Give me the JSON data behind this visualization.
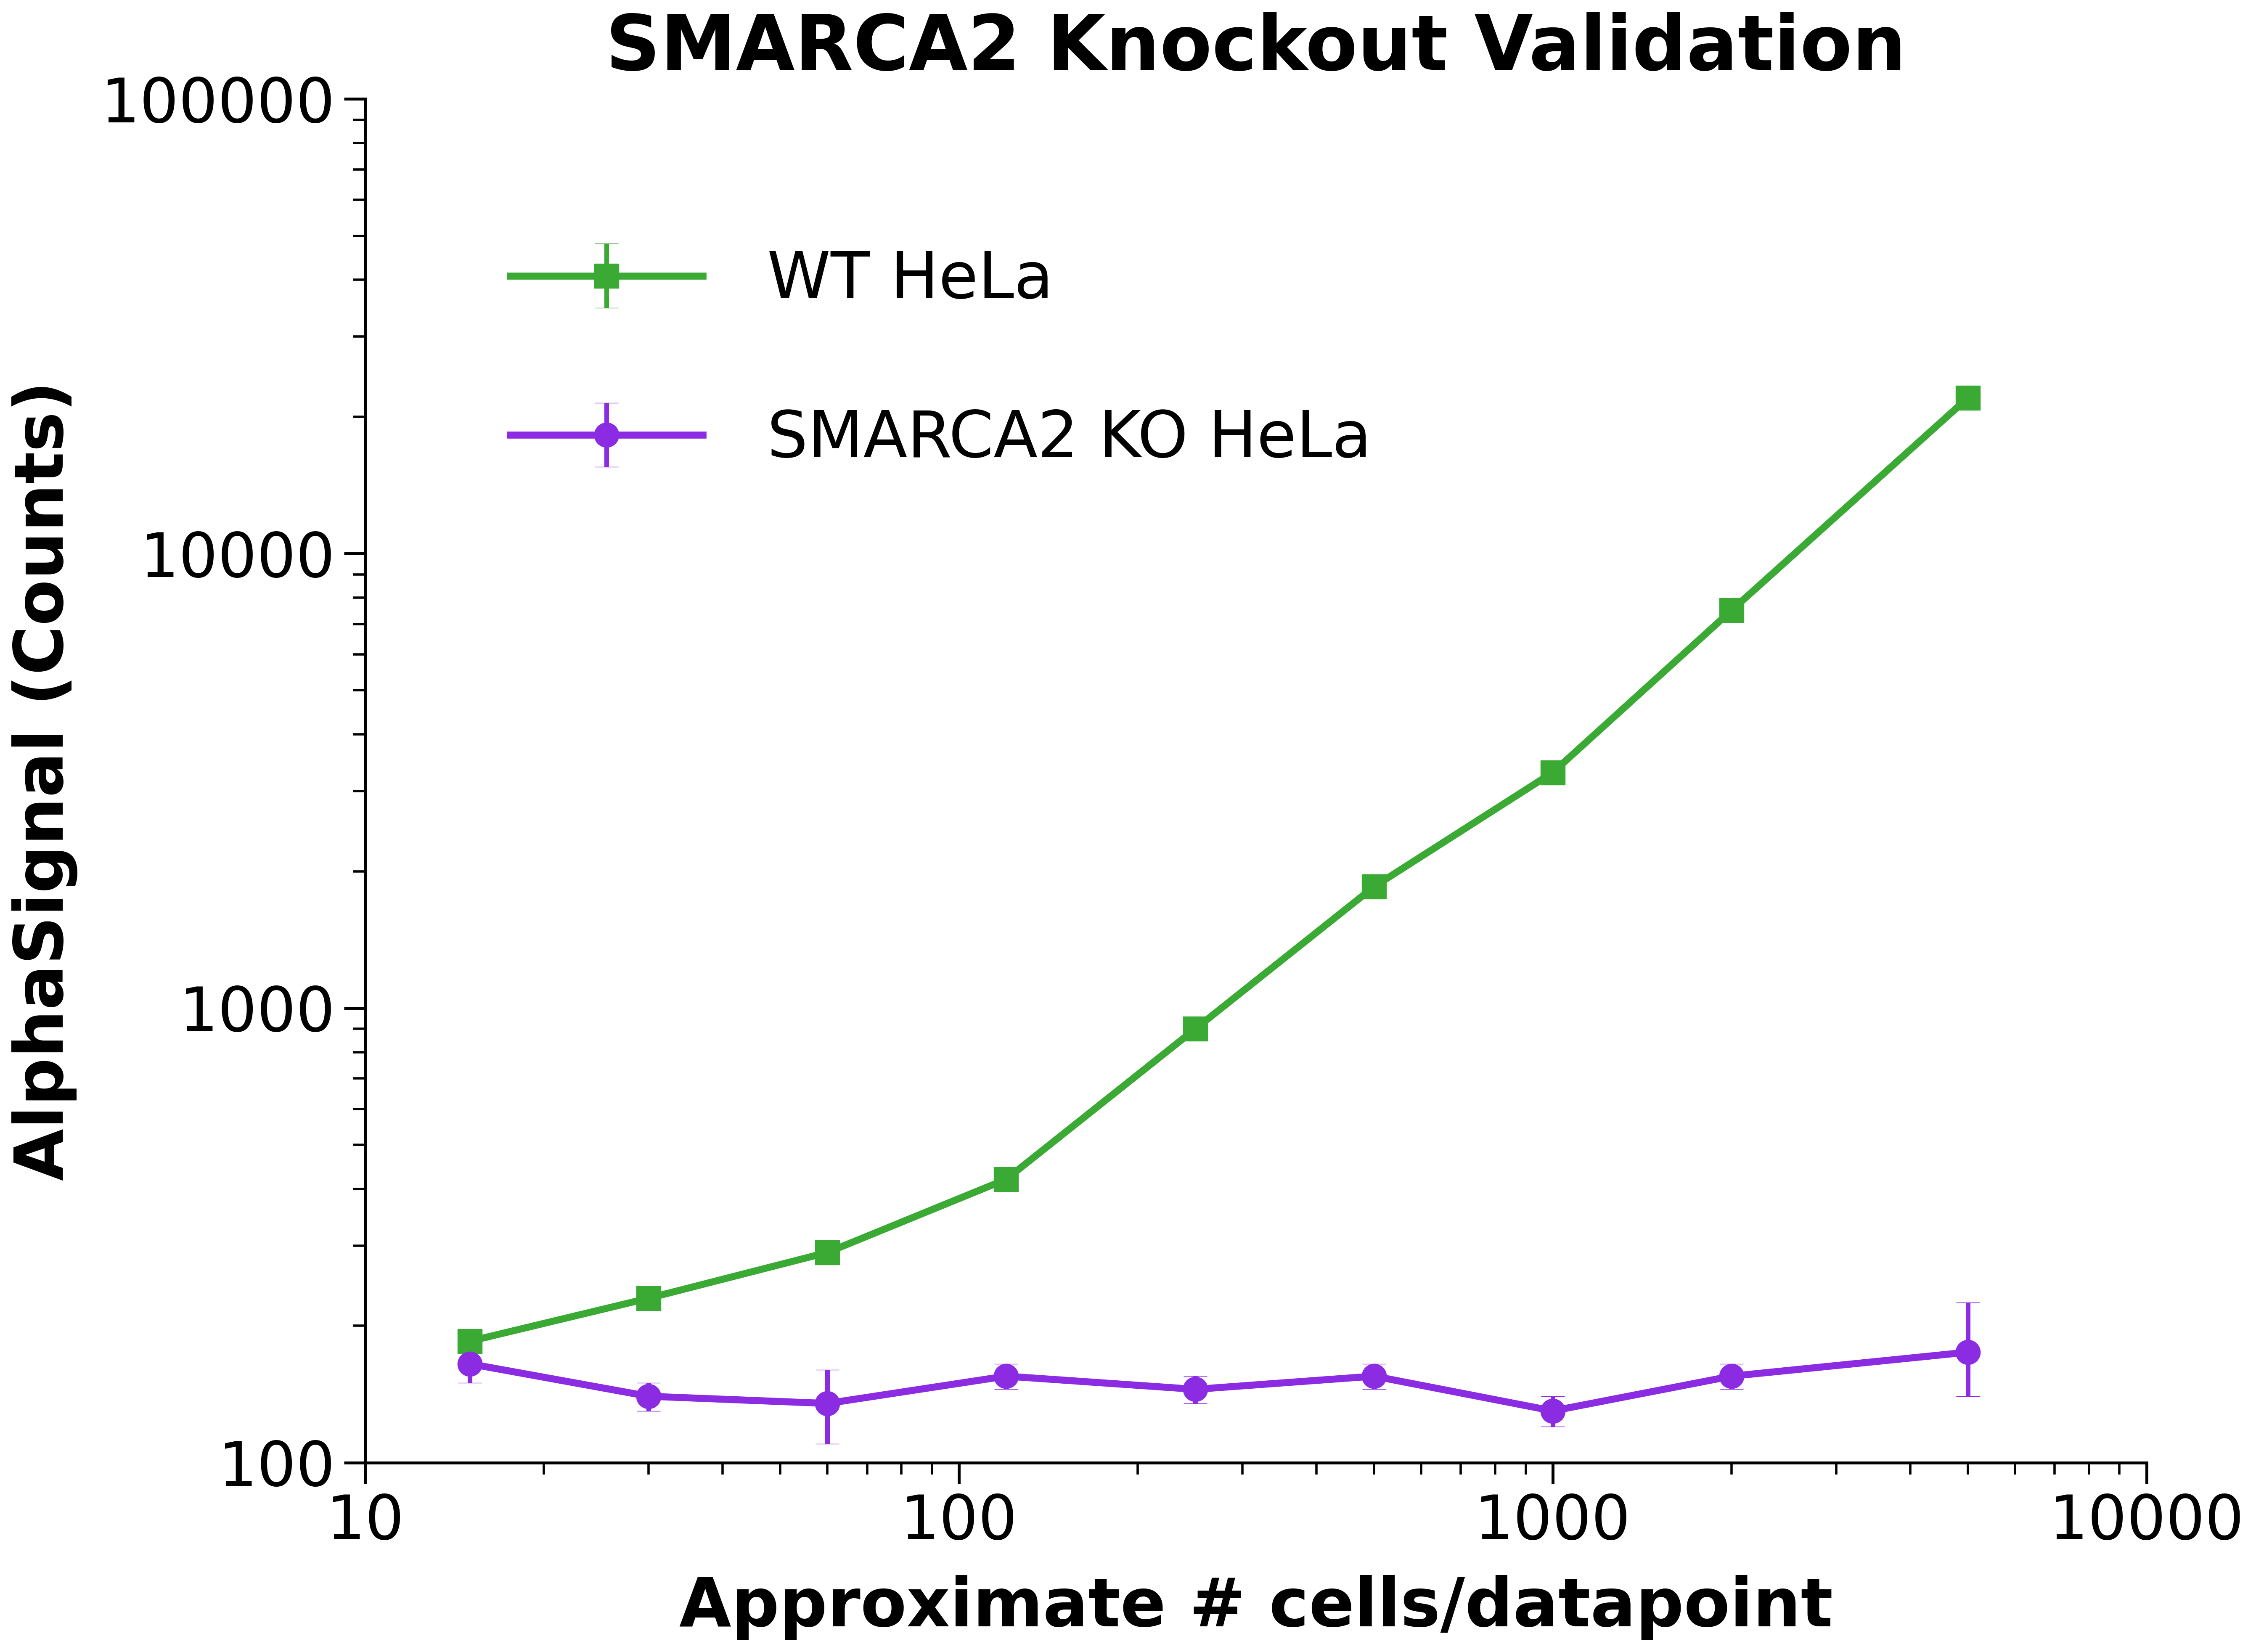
{
  "title": "SMARCA2 Knockout Validation",
  "xlabel": "Approximate # cells/datapoint",
  "ylabel": "AlphaSignal (Counts)",
  "background_color": "#ffffff",
  "wt_hela": {
    "label": "WT HeLa",
    "color": "#3aaa35",
    "marker": "s",
    "x": [
      15,
      30,
      60,
      120,
      250,
      500,
      1000,
      2000,
      5000
    ],
    "y": [
      185,
      230,
      290,
      420,
      900,
      1850,
      3300,
      7500,
      22000
    ],
    "yerr_low": [
      0,
      0,
      0,
      0,
      0,
      0,
      0,
      0,
      0
    ],
    "yerr_high": [
      0,
      0,
      0,
      0,
      0,
      0,
      0,
      0,
      0
    ]
  },
  "ko_hela": {
    "label": "SMARCA2 KO HeLa",
    "color": "#8b2be2",
    "marker": "o",
    "x": [
      15,
      30,
      60,
      120,
      250,
      500,
      1000,
      2000,
      5000
    ],
    "y": [
      165,
      140,
      135,
      155,
      145,
      155,
      130,
      155,
      175
    ],
    "yerr_low": [
      15,
      10,
      25,
      10,
      10,
      10,
      10,
      10,
      35
    ],
    "yerr_high": [
      15,
      10,
      25,
      10,
      10,
      10,
      10,
      10,
      50
    ]
  },
  "xlim": [
    10,
    8000
  ],
  "ylim": [
    100,
    100000
  ],
  "title_fontsize": 130,
  "label_fontsize": 115,
  "tick_fontsize": 105,
  "legend_fontsize": 110,
  "linewidth": 12,
  "markersize": 42,
  "capsize": 20,
  "elinewidth": 8
}
